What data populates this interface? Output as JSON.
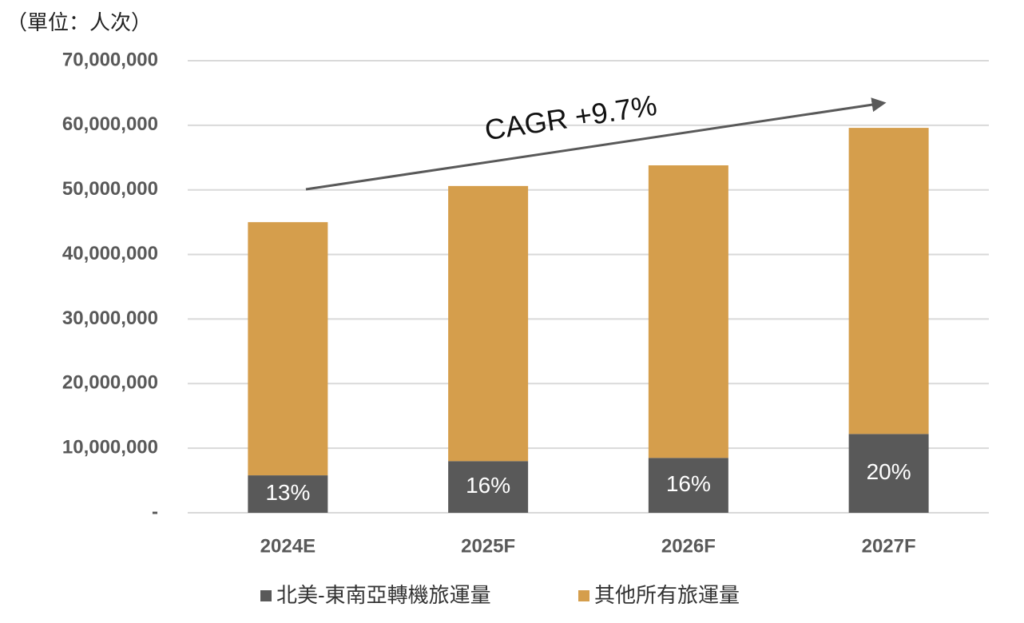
{
  "chart_data": {
    "type": "stacked-bar",
    "unit_label": "（單位：人次）",
    "annotation": "CAGR +9.7%",
    "categories": [
      "2024E",
      "2025F",
      "2026F",
      "2027F"
    ],
    "series": [
      {
        "name": "北美-東南亞轉機旅運量",
        "color": "#595959",
        "values": [
          5800000,
          8000000,
          8500000,
          12200000
        ],
        "share_labels": [
          "13%",
          "16%",
          "16%",
          "20%"
        ]
      },
      {
        "name": "其他所有旅運量",
        "color": "#d59e4c",
        "values": [
          39200000,
          42600000,
          45300000,
          47400000
        ]
      }
    ],
    "ylim": [
      0,
      70000000
    ],
    "yticks": [
      {
        "value": 0,
        "label": "-"
      },
      {
        "value": 10000000,
        "label": "10,000,000"
      },
      {
        "value": 20000000,
        "label": "20,000,000"
      },
      {
        "value": 30000000,
        "label": "30,000,000"
      },
      {
        "value": 40000000,
        "label": "40,000,000"
      },
      {
        "value": 50000000,
        "label": "50,000,000"
      },
      {
        "value": 60000000,
        "label": "60,000,000"
      },
      {
        "value": 70000000,
        "label": "70,000,000"
      }
    ],
    "grid": true
  }
}
